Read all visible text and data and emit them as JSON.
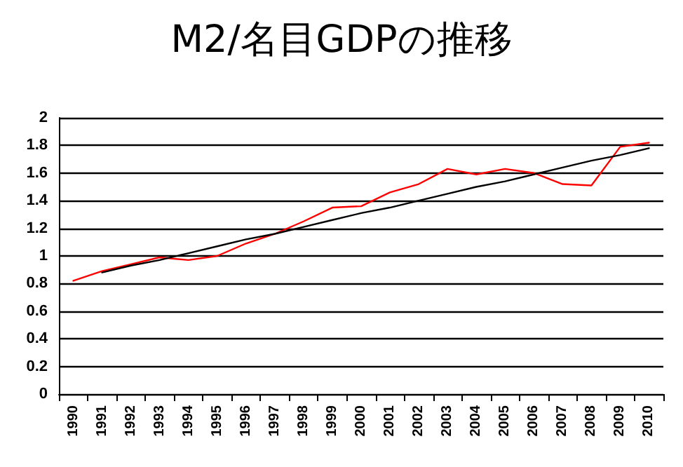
{
  "chart_data": {
    "type": "line",
    "title": "M2/名目GDPの推移",
    "categories": [
      "1990",
      "1991",
      "1992",
      "1993",
      "1994",
      "1995",
      "1996",
      "1997",
      "1998",
      "1999",
      "2000",
      "2001",
      "2002",
      "2003",
      "2004",
      "2005",
      "2006",
      "2007",
      "2008",
      "2009",
      "2010"
    ],
    "series": [
      {
        "color": "#ff0000",
        "values": [
          0.82,
          0.89,
          0.94,
          0.99,
          0.97,
          1.0,
          1.09,
          1.16,
          1.25,
          1.35,
          1.36,
          1.46,
          1.52,
          1.63,
          1.59,
          1.63,
          1.6,
          1.52,
          1.51,
          1.79,
          1.82
        ]
      },
      {
        "type": "line",
        "color": "#000000",
        "values": [
          null,
          0.88,
          0.93,
          0.97,
          1.02,
          1.07,
          1.12,
          1.16,
          1.21,
          1.26,
          1.31,
          1.35,
          1.4,
          1.45,
          1.5,
          1.54,
          1.59,
          1.64,
          1.69,
          1.73,
          1.78
        ]
      }
    ],
    "ylim": [
      0,
      2
    ],
    "yticks": [
      0,
      0.2,
      0.4,
      0.6,
      0.8,
      1,
      1.2,
      1.4,
      1.6,
      1.8,
      2
    ],
    "grid": "y",
    "marker": "none",
    "line_style": "solid"
  }
}
